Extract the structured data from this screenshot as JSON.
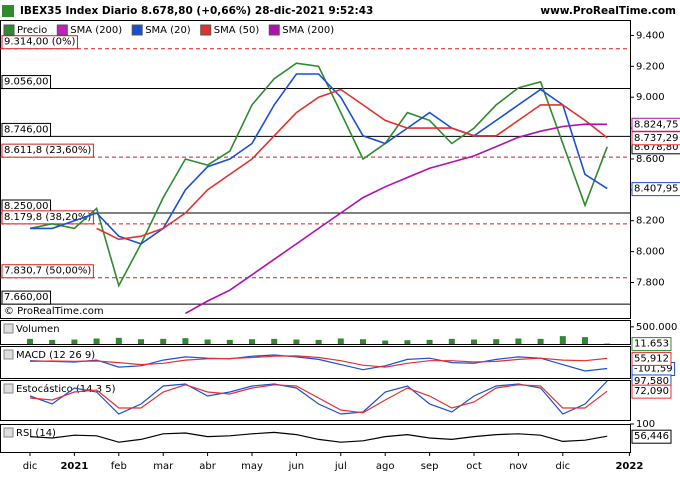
{
  "chart_data": [
    {
      "type": "line",
      "title": "IBEX35 Index Diario 8.678,80 (+0,66%) 28-dic-2021 9:52:43",
      "source": "www.ProRealTime.com",
      "watermark": "© ProRealTime.com",
      "categories": [
        "dic",
        null,
        "2021",
        null,
        "feb",
        null,
        "mar",
        null,
        "abr",
        null,
        "may",
        null,
        "jun",
        null,
        "jul",
        null,
        "ago",
        null,
        "sep",
        null,
        "oct",
        null,
        "nov",
        null,
        "dic",
        null,
        null,
        "2022"
      ],
      "ylim": [
        7570,
        9500
      ],
      "yticks": [
        {
          "value": 7800,
          "label": "7.800"
        },
        {
          "value": 8000,
          "label": "8.000"
        },
        {
          "value": 8200,
          "label": "8.200"
        },
        {
          "value": 8400,
          "label": "8.400"
        },
        {
          "value": 8600,
          "label": "8.600"
        },
        {
          "value": 8800,
          "label": "8.800"
        },
        {
          "value": 9000,
          "label": "9.000"
        },
        {
          "value": 9200,
          "label": "9.200"
        },
        {
          "value": 9400,
          "label": "9.400"
        }
      ],
      "extra_legend": {
        "name": "SMA (200)",
        "color": "#c020c0"
      },
      "series": [
        {
          "name": "Precio",
          "color": "#2e8b2e",
          "values": [
            8150,
            8180,
            8150,
            8280,
            7780,
            8050,
            8350,
            8600,
            8560,
            8650,
            8950,
            9120,
            9220,
            9200,
            8900,
            8600,
            8700,
            8900,
            8850,
            8700,
            8800,
            8950,
            9060,
            9100,
            8700,
            8300,
            8678.8,
            null
          ],
          "value_labels": [
            null,
            null,
            null,
            null,
            null,
            null,
            null,
            null,
            null,
            null,
            null,
            null,
            null,
            null,
            null,
            null,
            null,
            null,
            null,
            null,
            null,
            null,
            null,
            null,
            null,
            null,
            "8.678,80",
            null
          ]
        },
        {
          "name": "SMA (20)",
          "color": "#1a4fd6",
          "values": [
            8150,
            8150,
            8200,
            8250,
            8100,
            8050,
            8150,
            8400,
            8550,
            8600,
            8700,
            8950,
            9150,
            9150,
            9000,
            8750,
            8700,
            8800,
            8900,
            8800,
            8750,
            8850,
            8950,
            9050,
            8950,
            8500,
            8407.95,
            null
          ],
          "value_labels": [
            null,
            null,
            null,
            null,
            null,
            null,
            null,
            null,
            null,
            null,
            null,
            null,
            null,
            null,
            null,
            null,
            null,
            null,
            null,
            null,
            null,
            null,
            null,
            null,
            null,
            null,
            "8.407,95",
            null
          ]
        },
        {
          "name": "SMA (50)",
          "color": "#e53030",
          "values": [
            null,
            null,
            null,
            8150,
            8080,
            8100,
            8150,
            8250,
            8400,
            8500,
            8600,
            8750,
            8900,
            9000,
            9050,
            8950,
            8850,
            8800,
            8800,
            8800,
            8750,
            8750,
            8850,
            8950,
            8950,
            8850,
            8737.29,
            null
          ],
          "value_labels": [
            null,
            null,
            null,
            null,
            null,
            null,
            null,
            null,
            null,
            null,
            null,
            null,
            null,
            null,
            null,
            null,
            null,
            null,
            null,
            null,
            null,
            null,
            null,
            null,
            null,
            null,
            "8.737,29",
            null
          ]
        },
        {
          "name": "SMA (200)",
          "color": "#b010b0",
          "values": [
            null,
            null,
            null,
            null,
            null,
            null,
            null,
            7600,
            7680,
            7750,
            7850,
            7950,
            8050,
            8150,
            8250,
            8350,
            8420,
            8480,
            8540,
            8580,
            8620,
            8680,
            8740,
            8780,
            8810,
            8825,
            8824.75,
            null
          ],
          "value_labels": [
            null,
            null,
            null,
            null,
            null,
            null,
            null,
            null,
            null,
            null,
            null,
            null,
            null,
            null,
            null,
            null,
            null,
            null,
            null,
            null,
            null,
            null,
            null,
            null,
            null,
            null,
            "8.824,75",
            null
          ]
        }
      ],
      "levels": [
        {
          "value": 9314,
          "label": "9.314,00 (0%)",
          "color": "#d02020",
          "dashed": true
        },
        {
          "value": 9056,
          "label": "9.056,00",
          "color": "#000000",
          "dashed": false
        },
        {
          "value": 8746,
          "label": "8.746,00",
          "color": "#000000",
          "dashed": false
        },
        {
          "value": 8611.8,
          "label": "8.611,8 (23,60%)",
          "color": "#d02020",
          "dashed": true
        },
        {
          "value": 8250,
          "label": "8.250,00",
          "color": "#000000",
          "dashed": false
        },
        {
          "value": 8179.8,
          "label": "8.179,8 (38,20%)",
          "color": "#d02020",
          "dashed": true
        },
        {
          "value": 7830.7,
          "label": "7.830,7 (50,00%)",
          "color": "#d02020",
          "dashed": true
        },
        {
          "value": 7660,
          "label": "7.660,00",
          "color": "#000000",
          "dashed": false
        }
      ]
    },
    {
      "type": "bar",
      "title": "Volumen",
      "ylim": [
        0,
        700000
      ],
      "yticks": [
        {
          "value": 500000,
          "label": "500.000"
        }
      ],
      "series": [
        {
          "color": "#2e8b2e",
          "values": [
            150000,
            120000,
            130000,
            160000,
            180000,
            140000,
            150000,
            170000,
            130000,
            120000,
            140000,
            150000,
            130000,
            120000,
            160000,
            140000,
            100000,
            110000,
            120000,
            150000,
            130000,
            140000,
            160000,
            150000,
            230000,
            200000,
            11653,
            null
          ],
          "value_labels": [
            null,
            null,
            null,
            null,
            null,
            null,
            null,
            null,
            null,
            null,
            null,
            null,
            null,
            null,
            null,
            null,
            null,
            null,
            null,
            null,
            null,
            null,
            null,
            null,
            null,
            null,
            "11.653",
            null
          ]
        }
      ]
    },
    {
      "type": "line",
      "title": "MACD (12 26 9)",
      "ylim": [
        -250,
        250
      ],
      "yticks": [],
      "series": [
        {
          "color": "#1a4fd6",
          "values": [
            20,
            10,
            0,
            30,
            -80,
            -60,
            30,
            80,
            60,
            50,
            90,
            110,
            80,
            40,
            -40,
            -120,
            -60,
            40,
            60,
            -10,
            -20,
            40,
            80,
            60,
            -40,
            -140,
            -101.59,
            null
          ],
          "value_labels": [
            null,
            null,
            null,
            null,
            null,
            null,
            null,
            null,
            null,
            null,
            null,
            null,
            null,
            null,
            null,
            null,
            null,
            null,
            null,
            null,
            null,
            null,
            null,
            null,
            null,
            null,
            "-101,59",
            null
          ]
        },
        {
          "color": "#e53030",
          "values": [
            10,
            15,
            10,
            15,
            -10,
            -40,
            -20,
            30,
            50,
            55,
            70,
            90,
            95,
            70,
            20,
            -50,
            -80,
            -20,
            20,
            20,
            0,
            10,
            40,
            60,
            30,
            20,
            55.912,
            null
          ],
          "value_labels": [
            null,
            null,
            null,
            null,
            null,
            null,
            null,
            null,
            null,
            null,
            null,
            null,
            null,
            null,
            null,
            null,
            null,
            null,
            null,
            null,
            null,
            null,
            null,
            null,
            null,
            null,
            "55,912",
            null
          ]
        }
      ]
    },
    {
      "type": "line",
      "title": "Estocástico (14 3 5)",
      "ylim": [
        0,
        100
      ],
      "yticks": [],
      "series": [
        {
          "color": "#1a4fd6",
          "values": [
            60,
            40,
            80,
            70,
            15,
            40,
            85,
            90,
            60,
            70,
            85,
            90,
            80,
            40,
            15,
            20,
            70,
            85,
            40,
            20,
            60,
            85,
            90,
            80,
            15,
            40,
            97.58,
            null
          ],
          "value_labels": [
            null,
            null,
            null,
            null,
            null,
            null,
            null,
            null,
            null,
            null,
            null,
            null,
            null,
            null,
            null,
            null,
            null,
            null,
            null,
            null,
            null,
            null,
            null,
            null,
            null,
            null,
            "97,580",
            null
          ]
        },
        {
          "color": "#e53030",
          "values": [
            55,
            50,
            70,
            75,
            30,
            30,
            70,
            88,
            70,
            65,
            80,
            88,
            85,
            55,
            25,
            18,
            50,
            80,
            60,
            30,
            45,
            80,
            88,
            85,
            30,
            30,
            72.09,
            null
          ],
          "value_labels": [
            null,
            null,
            null,
            null,
            null,
            null,
            null,
            null,
            null,
            null,
            null,
            null,
            null,
            null,
            null,
            null,
            null,
            null,
            null,
            null,
            null,
            null,
            null,
            null,
            null,
            null,
            "72,090",
            null
          ]
        }
      ]
    },
    {
      "type": "line",
      "title": "RSI (14)",
      "ylim": [
        0,
        100
      ],
      "yticks": [
        100
      ],
      "series": [
        {
          "color": "#000000",
          "values": [
            55,
            50,
            60,
            58,
            35,
            45,
            65,
            68,
            55,
            58,
            65,
            70,
            62,
            45,
            35,
            40,
            55,
            62,
            50,
            45,
            55,
            62,
            65,
            60,
            38,
            42,
            56.446,
            null
          ],
          "value_labels": [
            null,
            null,
            null,
            null,
            null,
            null,
            null,
            null,
            null,
            null,
            null,
            null,
            null,
            null,
            null,
            null,
            null,
            null,
            null,
            null,
            null,
            null,
            null,
            null,
            null,
            null,
            "56,446",
            null
          ]
        }
      ]
    }
  ]
}
